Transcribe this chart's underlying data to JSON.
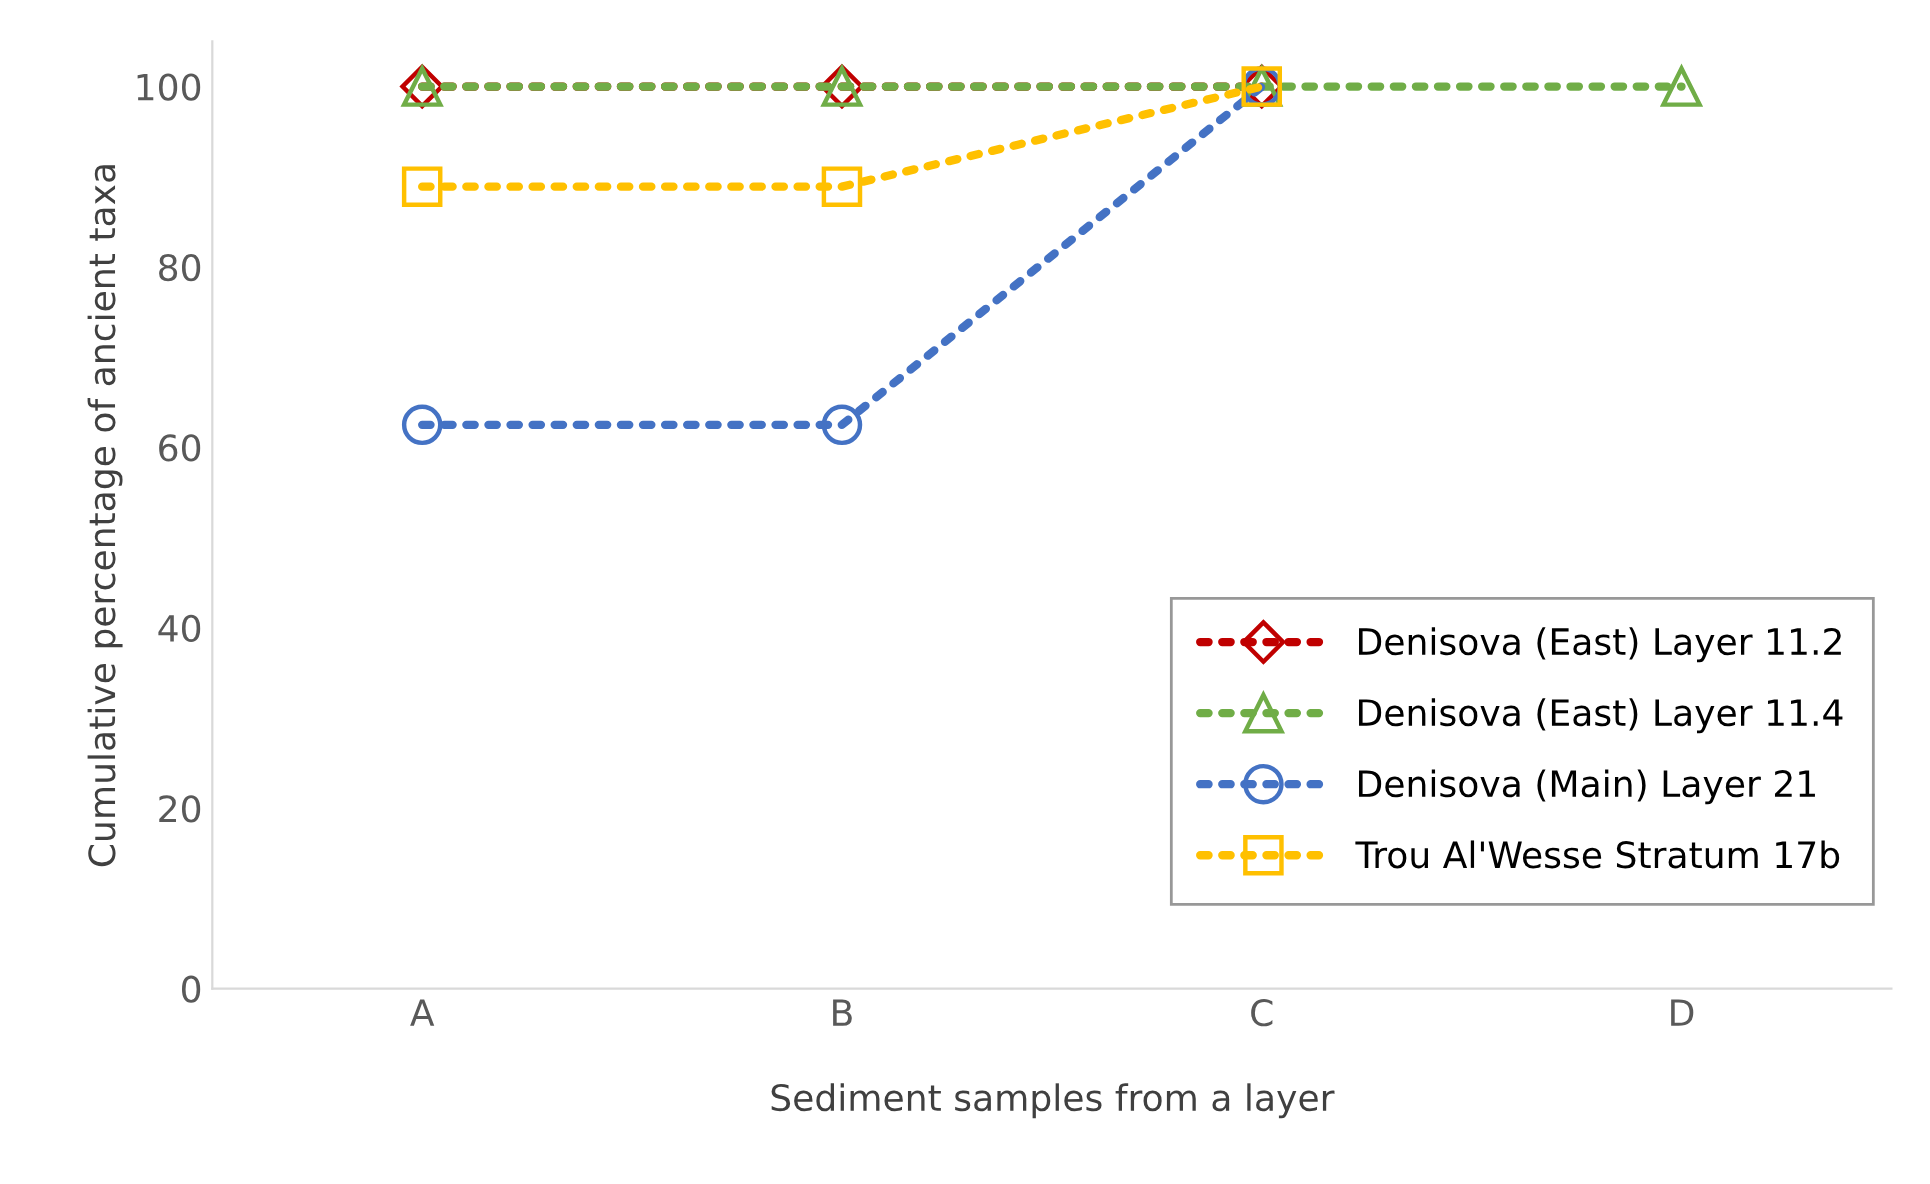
{
  "chart_data": {
    "type": "line",
    "xlabel": "Sediment samples from a layer",
    "ylabel": "Cumulative percentage of ancient taxa",
    "categories": [
      "A",
      "B",
      "C",
      "D"
    ],
    "series": [
      {
        "name": "Denisova (East) Layer 11.2",
        "color": "#c00000",
        "marker": "diamond",
        "values": [
          100,
          100,
          100,
          null
        ]
      },
      {
        "name": "Denisova (East) Layer 11.4",
        "color": "#70ad47",
        "marker": "triangle",
        "values": [
          100,
          100,
          100,
          100
        ]
      },
      {
        "name": "Denisova (Main) Layer 21",
        "color": "#4472c4",
        "marker": "circle",
        "values": [
          62.5,
          62.5,
          100,
          null
        ]
      },
      {
        "name": "Trou Al'Wesse Stratum 17b",
        "color": "#ffc000",
        "marker": "square",
        "values": [
          88.9,
          88.9,
          100,
          null
        ]
      }
    ],
    "ylim": [
      0,
      105
    ],
    "yticks": [
      0,
      20,
      40,
      60,
      80,
      100
    ],
    "line_style": "dotted",
    "legend": "right",
    "grid": false
  }
}
